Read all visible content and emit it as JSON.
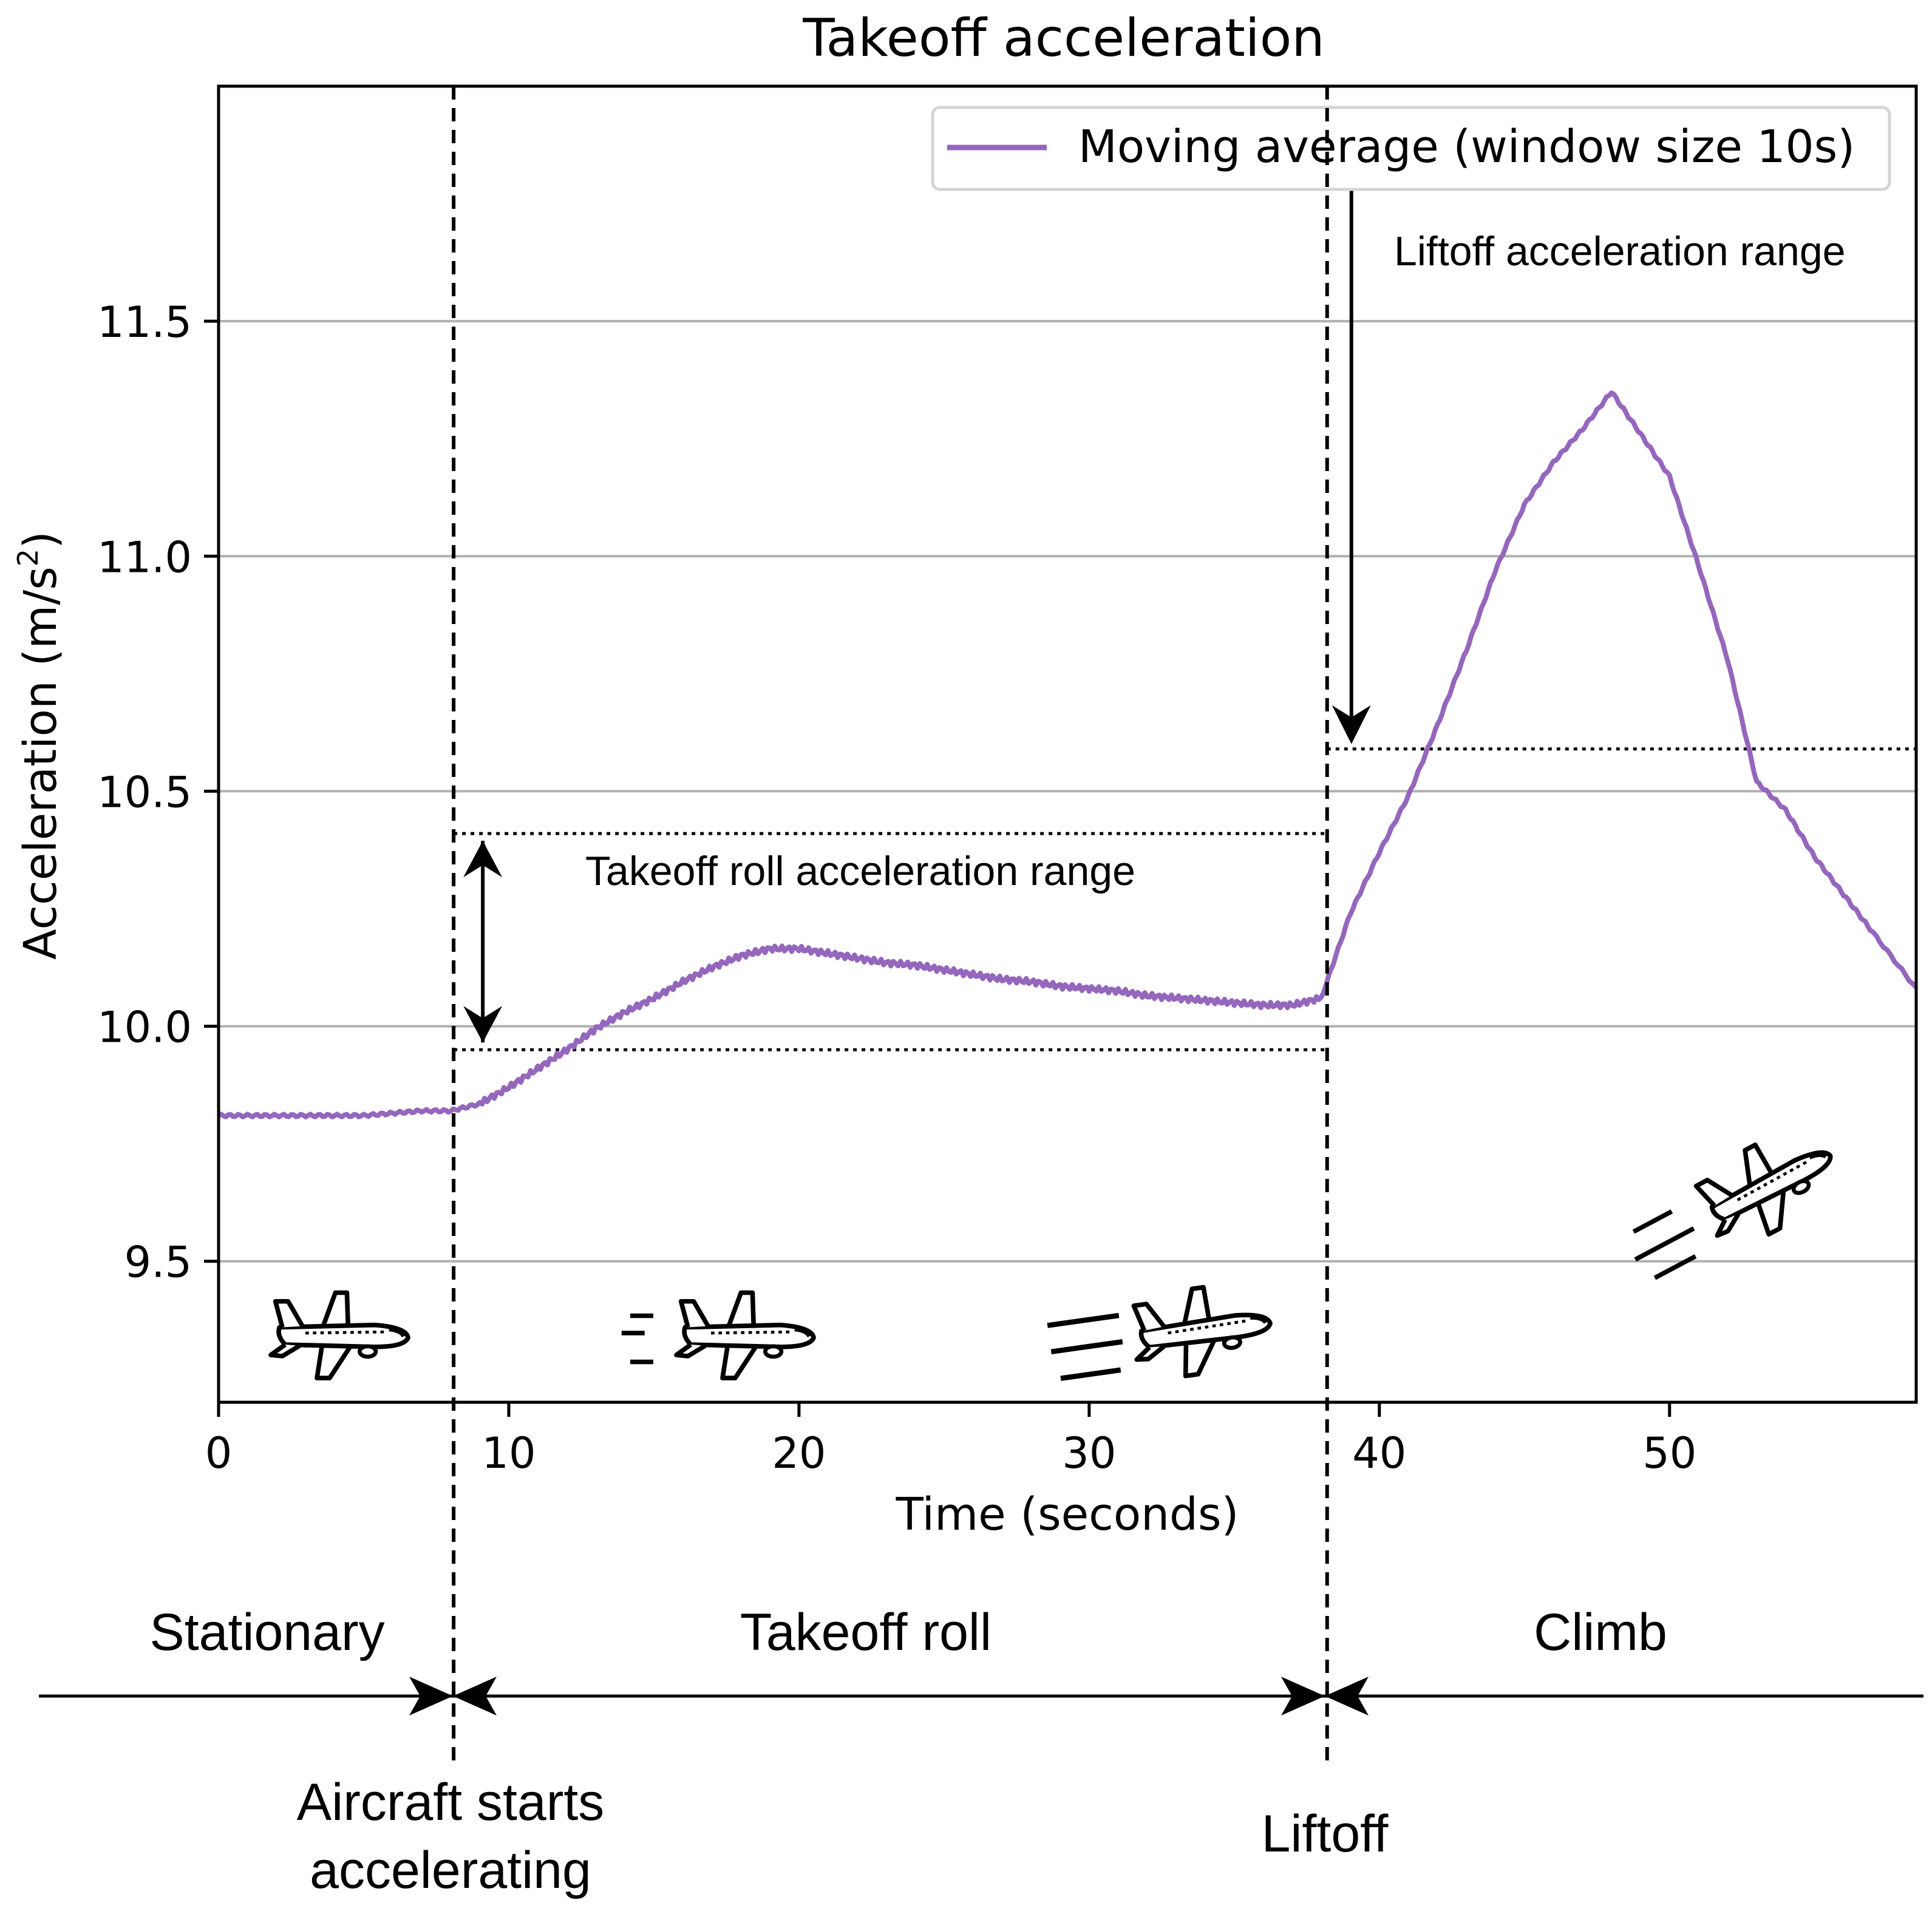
{
  "chart_data": {
    "type": "line",
    "title": "Takeoff acceleration",
    "xlabel": "Time (seconds)",
    "ylabel": "Acceleration (m/s²)",
    "ylabel_main": "Acceleration (m/s",
    "ylabel_sup": "2",
    "ylabel_close": ")",
    "xlim": [
      0,
      58.5
    ],
    "ylim": [
      9.2,
      12.0
    ],
    "xticks": [
      0,
      10,
      20,
      30,
      40,
      50
    ],
    "xtick_labels": [
      "0",
      "10",
      "20",
      "30",
      "40",
      "50"
    ],
    "yticks": [
      9.5,
      10.0,
      10.5,
      11.0,
      11.5
    ],
    "ytick_labels": [
      "9.5",
      "10.0",
      "10.5",
      "11.0",
      "11.5"
    ],
    "grid": "horizontal",
    "legend": {
      "placement": "top-right",
      "entries": [
        "Moving average (window size 10s)"
      ]
    },
    "series": [
      {
        "name": "Moving average (window size 10s)",
        "color": "#9467bd",
        "points": [
          [
            0,
            9.81
          ],
          [
            1,
            9.81
          ],
          [
            2,
            9.81
          ],
          [
            3,
            9.81
          ],
          [
            4,
            9.81
          ],
          [
            5,
            9.81
          ],
          [
            6,
            9.815
          ],
          [
            7,
            9.82
          ],
          [
            8,
            9.82
          ],
          [
            9,
            9.835
          ],
          [
            10,
            9.87
          ],
          [
            11,
            9.91
          ],
          [
            12,
            9.95
          ],
          [
            13,
            9.995
          ],
          [
            14,
            10.03
          ],
          [
            15,
            10.06
          ],
          [
            16,
            10.095
          ],
          [
            17,
            10.125
          ],
          [
            18,
            10.15
          ],
          [
            19,
            10.165
          ],
          [
            20,
            10.165
          ],
          [
            21,
            10.155
          ],
          [
            22,
            10.145
          ],
          [
            23,
            10.135
          ],
          [
            24,
            10.13
          ],
          [
            25,
            10.12
          ],
          [
            26,
            10.11
          ],
          [
            27,
            10.1
          ],
          [
            28,
            10.095
          ],
          [
            29,
            10.085
          ],
          [
            30,
            10.08
          ],
          [
            31,
            10.075
          ],
          [
            32,
            10.065
          ],
          [
            33,
            10.06
          ],
          [
            34,
            10.055
          ],
          [
            35,
            10.05
          ],
          [
            36,
            10.045
          ],
          [
            37,
            10.045
          ],
          [
            38,
            10.06
          ],
          [
            39,
            10.24
          ],
          [
            40,
            10.37
          ],
          [
            41,
            10.49
          ],
          [
            42,
            10.64
          ],
          [
            43,
            10.8
          ],
          [
            44,
            10.97
          ],
          [
            45,
            11.11
          ],
          [
            46,
            11.2
          ],
          [
            47,
            11.27
          ],
          [
            48,
            11.35
          ],
          [
            49,
            11.26
          ],
          [
            50,
            11.17
          ],
          [
            51,
            10.98
          ],
          [
            52,
            10.78
          ],
          [
            53,
            10.52
          ],
          [
            54,
            10.46
          ],
          [
            55,
            10.36
          ],
          [
            56,
            10.28
          ],
          [
            57,
            10.2
          ],
          [
            58.5,
            10.08
          ]
        ]
      }
    ],
    "phase_lines": [
      {
        "label": "Aircraft starts accelerating",
        "x": 8.1,
        "label_lines": [
          "Aircraft starts",
          "accelerating"
        ]
      },
      {
        "label": "Liftoff",
        "x": 38.2,
        "label_lines": [
          "Liftoff"
        ]
      }
    ],
    "ranges": [
      {
        "label": "Takeoff roll acceleration range",
        "from_x": 8.1,
        "to_x": 38.2,
        "low": 9.95,
        "high": 10.41
      },
      {
        "label": "Liftoff acceleration range",
        "from_x": 38.2,
        "to_x": 58.5,
        "threshold": 10.59
      }
    ],
    "phases": [
      "Stationary",
      "Takeoff roll",
      "Climb"
    ]
  },
  "icons": [
    "airplane-stationary-icon",
    "airplane-rolling-icon",
    "airplane-fast-roll-icon",
    "airplane-climb-icon"
  ]
}
